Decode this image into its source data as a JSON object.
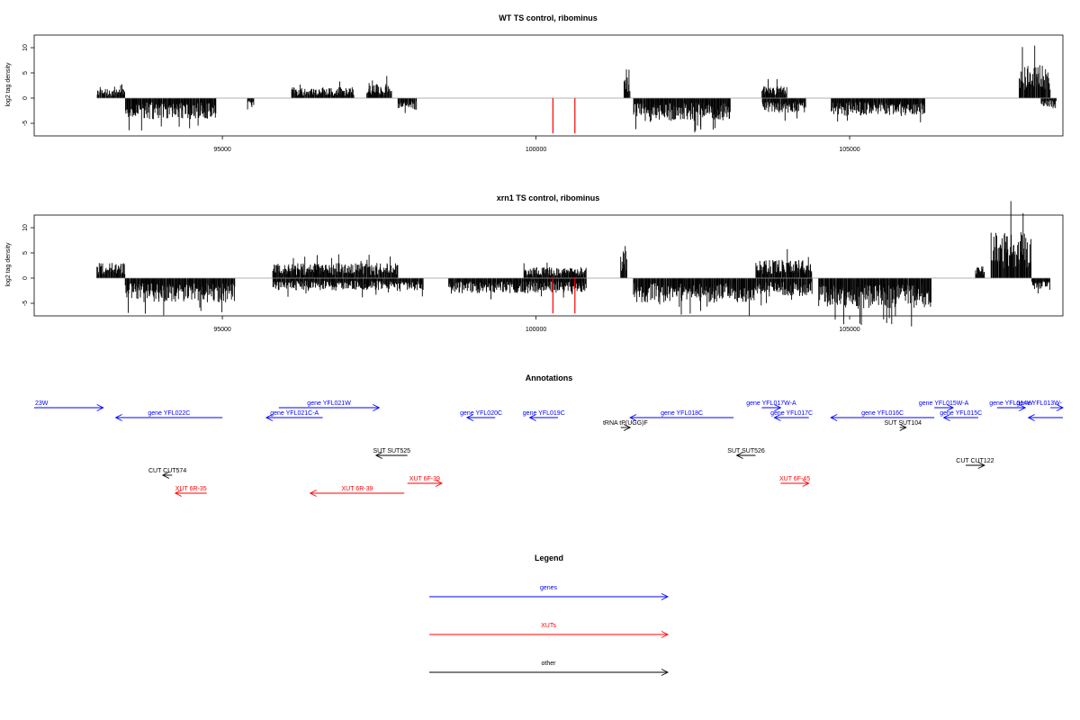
{
  "chart_data": [
    {
      "type": "bar",
      "title": "WT TS control, ribominus",
      "ylabel": "log2 tag density",
      "xlim": [
        92000,
        108400
      ],
      "ylim": [
        -7.5,
        12.5
      ],
      "yticks": [
        -5,
        0,
        5,
        10
      ],
      "xticks": [
        95000,
        100000,
        105000
      ],
      "colors": {
        "bars": "#000000",
        "highlight": "#ff0000",
        "baseline": "#999999"
      },
      "highlights": [
        {
          "x": 100270,
          "y": -7
        },
        {
          "x": 100620,
          "y": -7
        }
      ],
      "segments": [
        {
          "from": 93000,
          "to": 93450,
          "sign": 1,
          "amp": 1.5
        },
        {
          "from": 93450,
          "to": 94900,
          "sign": -1,
          "amp": 3.5
        },
        {
          "from": 95400,
          "to": 95500,
          "sign": -1,
          "amp": 2
        },
        {
          "from": 96100,
          "to": 97100,
          "sign": 1,
          "amp": 1.8
        },
        {
          "from": 97300,
          "to": 97700,
          "sign": 1,
          "amp": 2.5
        },
        {
          "from": 97800,
          "to": 98100,
          "sign": -1,
          "amp": 2
        },
        {
          "from": 101400,
          "to": 101500,
          "sign": 1,
          "amp": 5
        },
        {
          "from": 101550,
          "to": 103100,
          "sign": -1,
          "amp": 3.8
        },
        {
          "from": 103600,
          "to": 104000,
          "sign": 1,
          "amp": 2
        },
        {
          "from": 103600,
          "to": 104300,
          "sign": -1,
          "amp": 2.5
        },
        {
          "from": 104700,
          "to": 106200,
          "sign": -1,
          "amp": 3
        },
        {
          "from": 107700,
          "to": 108200,
          "sign": 1,
          "amp": 5.5
        },
        {
          "from": 108050,
          "to": 108300,
          "sign": -1,
          "amp": 1.5
        }
      ]
    },
    {
      "type": "bar",
      "title": "xrn1 TS control, ribominus",
      "ylabel": "log2 tag density",
      "xlim": [
        92000,
        108400
      ],
      "ylim": [
        -7.5,
        12.5
      ],
      "yticks": [
        -5,
        0,
        5,
        10
      ],
      "xticks": [
        95000,
        100000,
        105000
      ],
      "colors": {
        "bars": "#000000",
        "highlight": "#ff0000",
        "baseline": "#999999"
      },
      "highlights": [
        {
          "x": 100270,
          "y": -7
        },
        {
          "x": 100620,
          "y": -7
        }
      ],
      "segments": [
        {
          "from": 93000,
          "to": 93450,
          "sign": 1,
          "amp": 2.5
        },
        {
          "from": 93450,
          "to": 95200,
          "sign": -1,
          "amp": 4
        },
        {
          "from": 95800,
          "to": 97800,
          "sign": 1,
          "amp": 2.5
        },
        {
          "from": 95800,
          "to": 98200,
          "sign": -1,
          "amp": 2
        },
        {
          "from": 98600,
          "to": 100800,
          "sign": -1,
          "amp": 2.5
        },
        {
          "from": 99800,
          "to": 100800,
          "sign": 1,
          "amp": 1.8
        },
        {
          "from": 101350,
          "to": 101450,
          "sign": 1,
          "amp": 4.5
        },
        {
          "from": 101550,
          "to": 103500,
          "sign": -1,
          "amp": 4
        },
        {
          "from": 103500,
          "to": 104400,
          "sign": 1,
          "amp": 3
        },
        {
          "from": 103500,
          "to": 104400,
          "sign": -1,
          "amp": 3
        },
        {
          "from": 104500,
          "to": 106300,
          "sign": -1,
          "amp": 5
        },
        {
          "from": 107000,
          "to": 107150,
          "sign": 1,
          "amp": 2
        },
        {
          "from": 107250,
          "to": 107900,
          "sign": 1,
          "amp": 8
        },
        {
          "from": 107900,
          "to": 108200,
          "sign": -1,
          "amp": 2
        }
      ]
    }
  ],
  "annotations": {
    "title": "Annotations",
    "colors": {
      "genes": "#0000ff",
      "xuts": "#ff0000",
      "other": "#000000"
    },
    "features": [
      {
        "label": "23W",
        "category": "genes",
        "start": 92000,
        "end": 93100,
        "strand": "+",
        "row": 0
      },
      {
        "label": "gene YFL022C",
        "category": "genes",
        "start": 93300,
        "end": 95000,
        "strand": "-",
        "row": 1
      },
      {
        "label": "gene YFL021W",
        "category": "genes",
        "start": 95900,
        "end": 97500,
        "strand": "+",
        "row": 0
      },
      {
        "label": "gene YFL021C-A",
        "category": "genes",
        "start": 95700,
        "end": 96600,
        "strand": "-",
        "row": 1
      },
      {
        "label": "gene YFL020C",
        "category": "genes",
        "start": 98900,
        "end": 99350,
        "strand": "-",
        "row": 1
      },
      {
        "label": "gene YFL019C",
        "category": "genes",
        "start": 99900,
        "end": 100350,
        "strand": "-",
        "row": 1
      },
      {
        "label": "tRNA tP(UGG)F",
        "category": "other",
        "start": 101350,
        "end": 101500,
        "strand": "+",
        "row": 2
      },
      {
        "label": "gene YFL018C",
        "category": "genes",
        "start": 101500,
        "end": 103150,
        "strand": "-",
        "row": 1
      },
      {
        "label": "gene YFL017W-A",
        "category": "genes",
        "start": 103600,
        "end": 103900,
        "strand": "+",
        "row": 0
      },
      {
        "label": "gene YFL017C",
        "category": "genes",
        "start": 103800,
        "end": 104350,
        "strand": "-",
        "row": 1
      },
      {
        "label": "gene YFL016C",
        "category": "genes",
        "start": 104700,
        "end": 106350,
        "strand": "-",
        "row": 1
      },
      {
        "label": "gene YFL015W-A",
        "category": "genes",
        "start": 106350,
        "end": 106650,
        "strand": "+",
        "row": 0
      },
      {
        "label": "gene YFL015C",
        "category": "genes",
        "start": 106500,
        "end": 107050,
        "strand": "-",
        "row": 1
      },
      {
        "label": "gene YFL014W",
        "category": "genes",
        "start": 107350,
        "end": 107800,
        "strand": "+",
        "row": 0
      },
      {
        "label": "gene YFL013W-",
        "category": "genes",
        "start": 108200,
        "end": 108400,
        "strand": "+",
        "row": 0
      },
      {
        "label": "",
        "category": "genes",
        "start": 107850,
        "end": 108400,
        "strand": "-",
        "row": 1
      },
      {
        "label": "SUT SUT525",
        "category": "other",
        "start": 97450,
        "end": 97950,
        "strand": "-",
        "row": 3
      },
      {
        "label": "SUT SUT526",
        "category": "other",
        "start": 103200,
        "end": 103500,
        "strand": "-",
        "row": 3
      },
      {
        "label": "SUT SUT104",
        "category": "other",
        "start": 105800,
        "end": 105900,
        "strand": "+",
        "row": 2
      },
      {
        "label": "CUT CUT122",
        "category": "other",
        "start": 106850,
        "end": 107150,
        "strand": "+",
        "row": 4
      },
      {
        "label": "CUT CUT574",
        "category": "other",
        "start": 94050,
        "end": 94200,
        "strand": "-",
        "row": 5
      },
      {
        "label": "XUT 6F-39",
        "category": "xuts",
        "start": 97950,
        "end": 98500,
        "strand": "+",
        "row": 6
      },
      {
        "label": "XUT 6F-45",
        "category": "xuts",
        "start": 103900,
        "end": 104350,
        "strand": "+",
        "row": 6
      },
      {
        "label": "XUT 6R-35",
        "category": "xuts",
        "start": 94250,
        "end": 94750,
        "strand": "-",
        "row": 7
      },
      {
        "label": "XUT 6R-39",
        "category": "xuts",
        "start": 96400,
        "end": 97900,
        "strand": "-",
        "row": 7
      }
    ]
  },
  "legend": {
    "title": "Legend",
    "items": [
      {
        "label": "genes",
        "color": "#0000ff"
      },
      {
        "label": "XUTs",
        "color": "#ff0000"
      },
      {
        "label": "other",
        "color": "#000000"
      }
    ]
  }
}
